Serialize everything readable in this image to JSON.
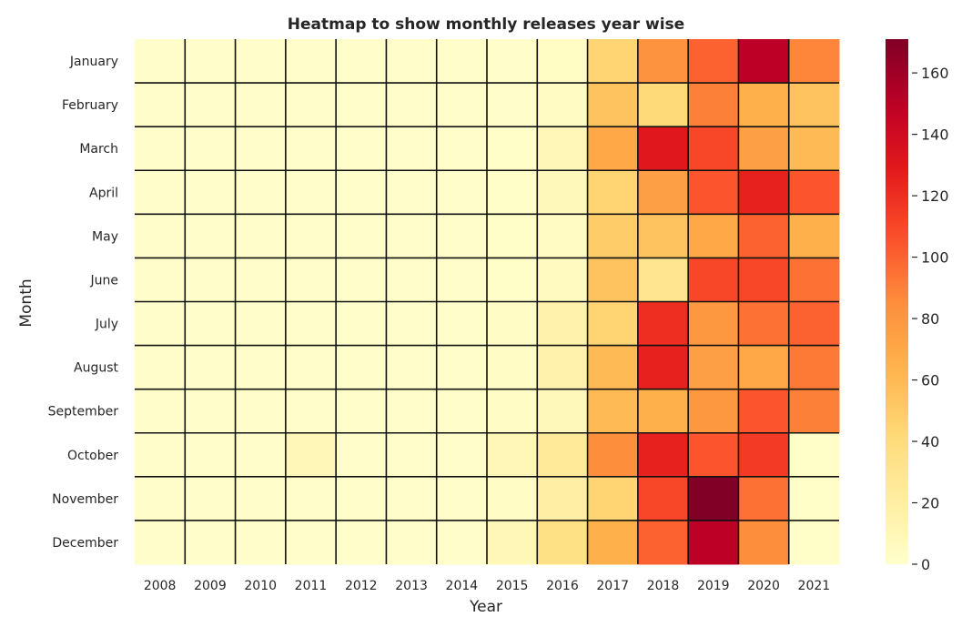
{
  "chart_data": {
    "type": "heatmap",
    "title": "Heatmap to show monthly releases year wise",
    "xlabel": "Year",
    "ylabel": "Month",
    "x_categories": [
      "2008",
      "2009",
      "2010",
      "2011",
      "2012",
      "2013",
      "2014",
      "2015",
      "2016",
      "2017",
      "2018",
      "2019",
      "2020",
      "2021"
    ],
    "y_categories": [
      "January",
      "February",
      "March",
      "April",
      "May",
      "June",
      "July",
      "August",
      "September",
      "October",
      "November",
      "December"
    ],
    "colorbar": {
      "min": 0,
      "max": 171,
      "ticks": [
        0,
        20,
        40,
        60,
        80,
        100,
        120,
        140,
        160
      ],
      "colormap": "YlOrRd"
    },
    "values": [
      [
        1,
        1,
        1,
        1,
        1,
        1,
        1,
        1,
        4,
        45,
        82,
        100,
        150,
        88
      ],
      [
        1,
        1,
        1,
        1,
        1,
        1,
        1,
        1,
        5,
        55,
        42,
        90,
        65,
        55
      ],
      [
        1,
        1,
        1,
        1,
        1,
        1,
        1,
        2,
        10,
        70,
        130,
        110,
        75,
        60
      ],
      [
        1,
        1,
        1,
        1,
        1,
        1,
        1,
        2,
        8,
        45,
        75,
        105,
        125,
        105
      ],
      [
        1,
        1,
        1,
        1,
        1,
        1,
        1,
        2,
        5,
        50,
        55,
        70,
        100,
        65
      ],
      [
        1,
        1,
        1,
        1,
        1,
        1,
        1,
        2,
        6,
        55,
        30,
        110,
        110,
        95
      ],
      [
        1,
        1,
        1,
        1,
        1,
        1,
        1,
        3,
        15,
        45,
        120,
        80,
        95,
        100
      ],
      [
        1,
        1,
        1,
        1,
        1,
        1,
        1,
        3,
        15,
        60,
        125,
        75,
        70,
        92
      ],
      [
        1,
        1,
        1,
        1,
        1,
        1,
        1,
        3,
        8,
        60,
        65,
        80,
        105,
        90
      ],
      [
        1,
        1,
        1,
        10,
        1,
        1,
        1,
        10,
        25,
        85,
        125,
        105,
        115,
        2
      ],
      [
        1,
        1,
        1,
        1,
        1,
        1,
        1,
        3,
        20,
        45,
        110,
        171,
        95,
        2
      ],
      [
        1,
        1,
        1,
        1,
        1,
        1,
        1,
        10,
        35,
        65,
        100,
        150,
        85,
        2
      ]
    ]
  }
}
